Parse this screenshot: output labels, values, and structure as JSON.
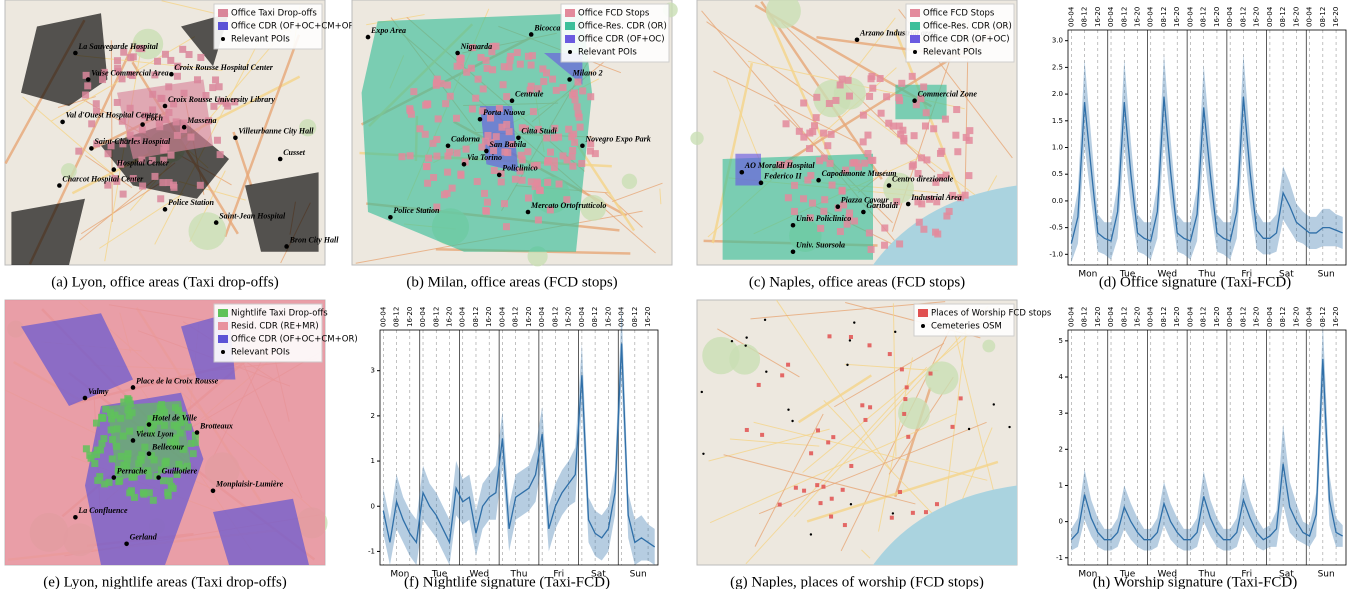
{
  "maps": [
    {
      "caption": "(a) Lyon, office areas (Taxi drop-offs)",
      "legend": [
        {
          "label": "Office Taxi Drop-offs",
          "color": "#d9869b"
        },
        {
          "label": "Office CDR (OF+OC+CM+OR)",
          "color": "#5b52d6"
        },
        {
          "label": "Relevant POIs",
          "color": "#000000"
        }
      ],
      "pois": [
        "La Sauvegarde Hospital",
        "Vaise Commercial Area",
        "Croix Rousse Hospital Center",
        "Croix Rousse University Library",
        "Val d'Ouest Hospital Center",
        "Saint-Charles Hospital",
        "Foch",
        "Massena",
        "Villeurbanne City Hall",
        "Cusset",
        "Charcot Hospital Center",
        "Hospital Center",
        "Police Station",
        "Saint-Jean Hospital",
        "Bron City Hall"
      ]
    },
    {
      "caption": "(b) Milan, office areas (FCD stops)",
      "legend": [
        {
          "label": "Office FCD Stops",
          "color": "#e38a9c"
        },
        {
          "label": "Office-Res. CDR (OR)",
          "color": "#3cbf9a"
        },
        {
          "label": "Office CDR (OF+OC)",
          "color": "#6a5ae0"
        },
        {
          "label": "Relevant POIs",
          "color": "#000000"
        }
      ],
      "pois": [
        "Expo Area",
        "Niguarda",
        "Bicocca",
        "Milano 2",
        "Centrale",
        "Porta Nuova",
        "Citta Studi",
        "Cadorna",
        "San Babila",
        "Via Torino",
        "Policlinico",
        "Novegro Expo Park",
        "Police Station",
        "Mercato Ortofrutticolo"
      ]
    },
    {
      "caption": "(c) Naples, office areas (FCD stops)",
      "legend": [
        {
          "label": "Office FCD Stops",
          "color": "#e38a9c"
        },
        {
          "label": "Office-Res. CDR (OR)",
          "color": "#3cbf9a"
        },
        {
          "label": "Office CDR (OF+OC)",
          "color": "#6a5ae0"
        },
        {
          "label": "Relevant POIs",
          "color": "#000000"
        }
      ],
      "pois": [
        "Arzano Industrial area",
        "Commercial Zone",
        "AO Moraldi Hospital",
        "Federico II",
        "Capodimonte Museum",
        "Centro direzionale",
        "Piazza Cavour",
        "Garibaldi",
        "Industrial Area",
        "Univ. Policlinico",
        "Univ. Suorsola"
      ]
    },
    {
      "caption": "(e) Lyon, nightlife areas (Taxi drop-offs)",
      "legend": [
        {
          "label": "Nightlife Taxi Drop-offs",
          "color": "#5fc25a"
        },
        {
          "label": "Resid. CDR (RE+MR)",
          "color": "#e8909e"
        },
        {
          "label": "Office CDR (OF+OC+CM+OR)",
          "color": "#5b52d6"
        },
        {
          "label": "Relevant POIs",
          "color": "#000000"
        }
      ],
      "pois": [
        "Valmy",
        "Place de la Croix Rousse",
        "Hotel de Ville",
        "Brotteaux",
        "Vieux Lyon",
        "Bellecour",
        "Perrache",
        "Guillotiere",
        "Monplaisir-Lumière",
        "La Confluence",
        "Gerland"
      ]
    },
    {
      "caption": "(g) Naples, places of worship (FCD stops)",
      "legend": [
        {
          "label": "Places of Worship FCD stops",
          "color": "#e05050"
        },
        {
          "label": "Cemeteries OSM",
          "color": "#000000"
        }
      ],
      "pois": []
    }
  ],
  "chart_data": [
    {
      "type": "line",
      "caption": "(d) Office signature (Taxi-FCD)",
      "color": "#2f6fa8",
      "categories": [
        "00-04",
        null,
        "08-12",
        null,
        "16-20",
        null,
        "00-04",
        null,
        "08-12",
        null,
        "16-20",
        null,
        "00-04",
        null,
        "08-12",
        null,
        "16-20",
        null,
        "00-04",
        null,
        "08-12",
        null,
        "16-20",
        null,
        "00-04",
        null,
        "08-12",
        null,
        "16-20",
        null,
        "00-04",
        null,
        "08-12",
        null,
        "16-20",
        null,
        "00-04",
        null,
        "08-12",
        null,
        "16-20",
        null
      ],
      "days": [
        "Mon",
        "Tue",
        "Wed",
        "Thu",
        "Fri",
        "Sat",
        "Sun"
      ],
      "values": [
        -0.8,
        -0.3,
        1.85,
        0.6,
        -0.6,
        -0.7,
        -0.75,
        -0.2,
        1.85,
        0.5,
        -0.6,
        -0.7,
        -0.75,
        -0.2,
        1.95,
        0.55,
        -0.6,
        -0.7,
        -0.75,
        -0.25,
        1.75,
        0.5,
        -0.6,
        -0.7,
        -0.75,
        -0.2,
        1.95,
        0.55,
        -0.55,
        -0.7,
        -0.7,
        -0.6,
        0.15,
        -0.1,
        -0.4,
        -0.5,
        -0.6,
        -0.6,
        -0.5,
        -0.5,
        -0.55,
        -0.6
      ],
      "band": [
        0.35,
        0.5,
        0.8,
        0.6,
        0.35,
        0.3,
        0.35,
        0.5,
        0.8,
        0.6,
        0.35,
        0.3,
        0.35,
        0.5,
        0.8,
        0.6,
        0.35,
        0.3,
        0.35,
        0.5,
        0.8,
        0.6,
        0.35,
        0.3,
        0.35,
        0.5,
        0.8,
        0.6,
        0.35,
        0.3,
        0.3,
        0.35,
        0.5,
        0.45,
        0.35,
        0.3,
        0.3,
        0.3,
        0.35,
        0.35,
        0.3,
        0.3
      ],
      "ylim": [
        -1.2,
        3.2
      ],
      "yticks": [
        {
          "value": -1,
          "label": "-1.0"
        },
        -0.5,
        {
          "value": 0,
          "label": "0.0"
        },
        0.5,
        {
          "value": 1,
          "label": "1.0"
        },
        1.5,
        {
          "value": 2,
          "label": "2.0"
        },
        2.5,
        {
          "value": 3,
          "label": "3.0"
        }
      ],
      "grid": true
    },
    {
      "type": "line",
      "caption": "(f) Nightlife signature (Taxi-FCD)",
      "color": "#2f6fa8",
      "categories": [
        "00-04",
        null,
        "08-12",
        null,
        "16-20",
        null,
        "00-04",
        null,
        "08-12",
        null,
        "16-20",
        null,
        "00-04",
        null,
        "08-12",
        null,
        "16-20",
        null,
        "00-04",
        null,
        "08-12",
        null,
        "16-20",
        null,
        "00-04",
        null,
        "08-12",
        null,
        "16-20",
        null,
        "00-04",
        null,
        "08-12",
        null,
        "16-20",
        null,
        "00-04",
        null,
        "08-12",
        null,
        "16-20",
        null
      ],
      "days": [
        "Mon",
        "Tue",
        "Wed",
        "Thu",
        "Fri",
        "Sat",
        "Sun"
      ],
      "values": [
        -0.1,
        -0.8,
        0.1,
        -0.3,
        -0.6,
        -0.8,
        0.3,
        0.0,
        -0.2,
        -0.5,
        -0.8,
        0.4,
        0.1,
        0.2,
        -0.6,
        0.0,
        0.2,
        0.3,
        1.5,
        -0.5,
        0.2,
        0.3,
        0.4,
        0.7,
        1.6,
        -0.5,
        0.0,
        0.3,
        0.5,
        0.7,
        2.9,
        -0.3,
        -0.6,
        -0.7,
        -0.5,
        0.3,
        3.6,
        -0.2,
        -0.8,
        -0.7,
        -0.8,
        -0.9
      ],
      "band": [
        0.5,
        0.5,
        0.6,
        0.5,
        0.5,
        0.5,
        0.6,
        0.5,
        0.5,
        0.5,
        0.5,
        0.6,
        0.5,
        0.5,
        0.5,
        0.5,
        0.5,
        0.6,
        0.6,
        0.5,
        0.5,
        0.5,
        0.5,
        0.6,
        0.6,
        0.5,
        0.5,
        0.5,
        0.5,
        0.6,
        0.7,
        0.5,
        0.5,
        0.5,
        0.5,
        0.5,
        0.8,
        0.5,
        0.5,
        0.5,
        0.4,
        0.4
      ],
      "ylim": [
        -1.3,
        3.9
      ],
      "yticks": [
        -1,
        0,
        1,
        2,
        3
      ],
      "grid": true
    },
    {
      "type": "line",
      "caption": "(h) Worship signature (Taxi-FCD)",
      "color": "#2f6fa8",
      "categories": [
        "00-04",
        null,
        "08-12",
        null,
        "16-20",
        null,
        "00-04",
        null,
        "08-12",
        null,
        "16-20",
        null,
        "00-04",
        null,
        "08-12",
        null,
        "16-20",
        null,
        "00-04",
        null,
        "08-12",
        null,
        "16-20",
        null,
        "00-04",
        null,
        "08-12",
        null,
        "16-20",
        null,
        "00-04",
        null,
        "08-12",
        null,
        "16-20",
        null,
        "00-04",
        null,
        "08-12",
        null,
        "16-20",
        null
      ],
      "days": [
        "Mon",
        "Tue",
        "Wed",
        "Thu",
        "Fri",
        "Sat",
        "Sun"
      ],
      "values": [
        -0.5,
        -0.3,
        0.75,
        0.1,
        -0.3,
        -0.5,
        -0.5,
        -0.3,
        0.4,
        0.0,
        -0.3,
        -0.5,
        -0.5,
        -0.3,
        0.5,
        0.0,
        -0.3,
        -0.5,
        -0.5,
        -0.3,
        0.7,
        0.1,
        -0.3,
        -0.5,
        -0.5,
        -0.3,
        0.6,
        0.1,
        -0.3,
        -0.5,
        -0.4,
        -0.2,
        1.6,
        0.4,
        0.0,
        -0.3,
        -0.4,
        0.2,
        4.5,
        0.6,
        -0.3,
        -0.4
      ],
      "band": [
        0.3,
        0.4,
        0.7,
        0.5,
        0.4,
        0.3,
        0.3,
        0.4,
        0.6,
        0.5,
        0.4,
        0.3,
        0.3,
        0.4,
        0.6,
        0.5,
        0.4,
        0.3,
        0.3,
        0.4,
        0.7,
        0.5,
        0.4,
        0.3,
        0.3,
        0.4,
        0.7,
        0.5,
        0.4,
        0.3,
        0.3,
        0.5,
        1.1,
        0.7,
        0.5,
        0.3,
        0.3,
        0.6,
        1.0,
        0.7,
        0.4,
        0.3
      ],
      "ylim": [
        -1.2,
        5.3
      ],
      "yticks": [
        -1,
        0,
        1,
        2,
        3,
        4,
        5
      ],
      "grid": true
    }
  ]
}
